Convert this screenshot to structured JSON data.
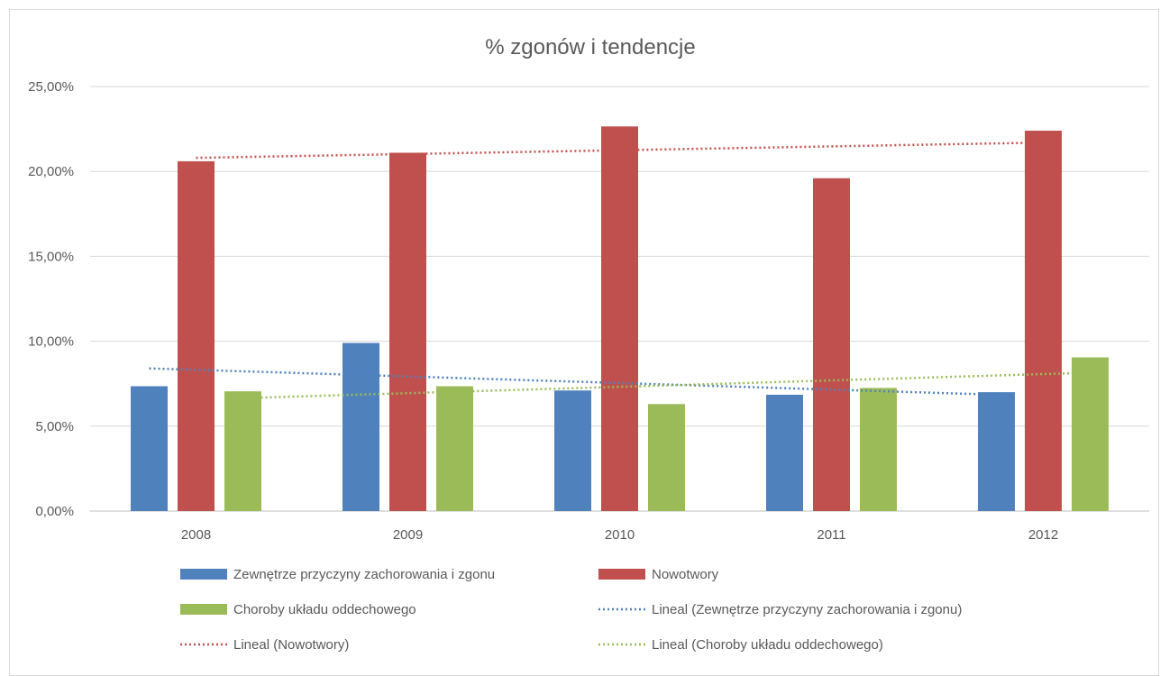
{
  "chart_data": {
    "type": "bar",
    "title": "% zgonów i tendencje",
    "categories": [
      "2008",
      "2009",
      "2010",
      "2011",
      "2012"
    ],
    "ylim": [
      0,
      25
    ],
    "yticks": [
      0,
      5,
      10,
      15,
      20,
      25
    ],
    "ytick_labels": [
      "0,00%",
      "5,00%",
      "10,00%",
      "15,00%",
      "20,00%",
      "25,00%"
    ],
    "grid": true,
    "legend_position": "bottom",
    "series": [
      {
        "name": "Zewnętrze przyczyny zachorowania i zgonu",
        "color": "#4f81bd",
        "values": [
          7.35,
          9.9,
          7.1,
          6.85,
          7.0
        ]
      },
      {
        "name": "Nowotwory",
        "color": "#c0504d",
        "values": [
          20.6,
          21.1,
          22.65,
          19.6,
          22.4
        ]
      },
      {
        "name": "Choroby układu oddechowego",
        "color": "#9bbb59",
        "values": [
          7.05,
          7.35,
          6.3,
          7.25,
          9.05
        ]
      }
    ],
    "trendlines": [
      {
        "name": "Lineal (Zewnętrze przyczyny zachorowania i zgonu)",
        "color": "#4f81bd",
        "series_index": 0,
        "start": 8.4,
        "end": 6.85
      },
      {
        "name": "Lineal (Nowotwory)",
        "color": "#c0504d",
        "series_index": 1,
        "start": 20.8,
        "end": 21.7
      },
      {
        "name": "Lineal (Choroby układu oddechowego)",
        "color": "#9bbb59",
        "series_index": 2,
        "start": 6.65,
        "end": 8.15
      }
    ]
  }
}
